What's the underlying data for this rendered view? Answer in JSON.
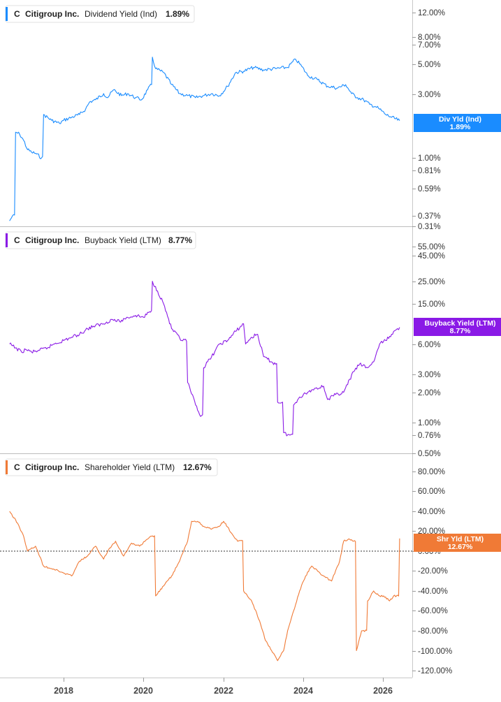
{
  "chart_data": [
    {
      "type": "line",
      "ticker": "C",
      "company": "Citigroup Inc.",
      "metric": "Dividend Yield (Ind)",
      "latest": "1.89%",
      "badge_lines": [
        "Div Yld (Ind)",
        "1.89%"
      ],
      "color": "#1a8cff",
      "scale": "log",
      "ylim": [
        0.31,
        15.5
      ],
      "y_ticks": [
        "12.00%",
        "8.00%",
        "7.00%",
        "5.00%",
        "3.00%",
        "1.00%",
        "0.81%",
        "0.59%",
        "0.37%",
        "0.31%"
      ],
      "x": [
        2016.65,
        2016.72,
        2016.8,
        2016.9,
        2017.0,
        2017.1,
        2017.2,
        2017.3,
        2017.45,
        2017.5,
        2017.7,
        2017.9,
        2018.0,
        2018.2,
        2018.4,
        2018.55,
        2018.65,
        2018.8,
        2019.0,
        2019.1,
        2019.25,
        2019.45,
        2019.6,
        2019.8,
        2019.95,
        2020.1,
        2020.2,
        2020.22,
        2020.3,
        2020.5,
        2020.7,
        2020.9,
        2021.1,
        2021.3,
        2021.5,
        2021.7,
        2021.9,
        2022.1,
        2022.3,
        2022.5,
        2022.75,
        2023.0,
        2023.3,
        2023.6,
        2023.8,
        2023.95,
        2024.1,
        2024.35,
        2024.6,
        2024.85,
        2025.05,
        2025.2,
        2025.35,
        2025.5,
        2025.65,
        2025.8,
        2025.9,
        2026.05,
        2026.2,
        2026.4
      ],
      "y": [
        0.34,
        0.37,
        1.55,
        1.5,
        1.35,
        1.15,
        1.1,
        1.08,
        1.0,
        2.1,
        1.9,
        1.8,
        1.9,
        2.0,
        2.1,
        2.3,
        2.6,
        2.7,
        3.0,
        2.8,
        3.2,
        2.9,
        3.0,
        2.8,
        2.7,
        3.2,
        3.5,
        5.6,
        4.6,
        4.3,
        3.5,
        3.0,
        2.9,
        2.8,
        2.9,
        3.0,
        2.9,
        3.4,
        4.3,
        4.4,
        4.7,
        4.5,
        4.6,
        4.7,
        5.4,
        4.8,
        4.1,
        3.8,
        3.4,
        3.3,
        3.5,
        3.0,
        2.8,
        2.7,
        2.5,
        2.4,
        2.3,
        2.1,
        2.0,
        1.89
      ]
    },
    {
      "type": "line",
      "ticker": "C",
      "company": "Citigroup Inc.",
      "metric": "Buyback Yield (LTM)",
      "latest": "8.77%",
      "badge_lines": [
        "Buyback Yield (LTM)",
        "8.77%"
      ],
      "color": "#8a1ae6",
      "scale": "log",
      "ylim": [
        0.5,
        75
      ],
      "y_ticks": [
        "55.00%",
        "45.00%",
        "25.00%",
        "15.00%",
        "6.00%",
        "3.00%",
        "2.00%",
        "1.00%",
        "0.76%",
        "0.50%"
      ],
      "x": [
        2016.65,
        2016.8,
        2016.95,
        2017.05,
        2017.2,
        2017.4,
        2017.6,
        2017.75,
        2018.0,
        2018.2,
        2018.4,
        2018.6,
        2018.75,
        2019.0,
        2019.2,
        2019.4,
        2019.6,
        2019.8,
        2020.0,
        2020.15,
        2020.22,
        2020.35,
        2020.5,
        2020.7,
        2020.95,
        2021.1,
        2021.3,
        2021.4,
        2021.5,
        2021.7,
        2021.9,
        2022.1,
        2022.3,
        2022.5,
        2022.55,
        2022.7,
        2022.85,
        2023.0,
        2023.2,
        2023.3,
        2023.35,
        2023.5,
        2023.6,
        2023.75,
        2023.9,
        2024.1,
        2024.3,
        2024.5,
        2024.6,
        2024.8,
        2025.0,
        2025.25,
        2025.4,
        2025.6,
        2025.75,
        2025.9,
        2026.05,
        2026.2,
        2026.4
      ],
      "y": [
        6.0,
        5.5,
        5.0,
        5.3,
        5.0,
        5.2,
        5.5,
        6.0,
        6.5,
        7.0,
        7.5,
        8.5,
        9.0,
        9.5,
        10.5,
        10.0,
        11.0,
        11.5,
        11.0,
        12.5,
        25.0,
        20.0,
        15.0,
        8.5,
        6.5,
        2.5,
        1.5,
        1.2,
        3.5,
        4.5,
        6.0,
        6.5,
        8.0,
        9.5,
        6.0,
        7.0,
        7.5,
        4.5,
        4.0,
        3.8,
        1.6,
        0.8,
        0.76,
        1.5,
        1.8,
        2.0,
        2.2,
        2.3,
        1.7,
        1.9,
        2.0,
        3.2,
        3.8,
        3.5,
        4.0,
        6.0,
        6.5,
        7.5,
        8.77
      ]
    },
    {
      "type": "line",
      "ticker": "C",
      "company": "Citigroup Inc.",
      "metric": "Shareholder Yield (LTM)",
      "latest": "12.67%",
      "badge_lines": [
        "Shr Yld (LTM)",
        "12.67%"
      ],
      "color": "#f07a36",
      "scale": "linear",
      "ylim": [
        -135,
        95
      ],
      "y_ticks": [
        "80.00%",
        "60.00%",
        "40.00%",
        "20.00%",
        "0.00%",
        "-20.00%",
        "-40.00%",
        "-60.00%",
        "-80.00%",
        "-100.00%",
        "-120.00%"
      ],
      "zero_line": "dotted",
      "x": [
        2016.65,
        2016.85,
        2017.0,
        2017.1,
        2017.3,
        2017.5,
        2017.75,
        2018.0,
        2018.2,
        2018.4,
        2018.6,
        2018.8,
        2019.0,
        2019.15,
        2019.3,
        2019.5,
        2019.7,
        2019.9,
        2020.1,
        2020.2,
        2020.3,
        2020.5,
        2020.7,
        2020.9,
        2021.1,
        2021.2,
        2021.35,
        2021.5,
        2021.7,
        2021.9,
        2022.0,
        2022.25,
        2022.35,
        2022.5,
        2022.7,
        2022.9,
        2023.05,
        2023.2,
        2023.35,
        2023.5,
        2023.6,
        2023.75,
        2023.9,
        2024.05,
        2024.2,
        2024.35,
        2024.5,
        2024.7,
        2024.9,
        2025.0,
        2025.15,
        2025.25,
        2025.32,
        2025.45,
        2025.6,
        2025.75,
        2025.9,
        2026.0,
        2026.15,
        2026.25,
        2026.4
      ],
      "y": [
        40,
        28,
        15,
        0,
        5,
        -15,
        -18,
        -22,
        -25,
        -10,
        -5,
        5,
        -8,
        3,
        10,
        -5,
        8,
        5,
        12,
        15,
        -45,
        -35,
        -25,
        -10,
        10,
        30,
        30,
        25,
        22,
        25,
        30,
        15,
        10,
        -40,
        -50,
        -70,
        -90,
        -100,
        -110,
        -100,
        -80,
        -60,
        -40,
        -25,
        -15,
        -20,
        -25,
        -30,
        -10,
        10,
        12,
        10,
        -100,
        -80,
        -50,
        -40,
        -45,
        -45,
        -50,
        -45,
        12.67
      ]
    }
  ],
  "x_axis": {
    "ticks": [
      "2018",
      "2020",
      "2022",
      "2024",
      "2026"
    ]
  }
}
